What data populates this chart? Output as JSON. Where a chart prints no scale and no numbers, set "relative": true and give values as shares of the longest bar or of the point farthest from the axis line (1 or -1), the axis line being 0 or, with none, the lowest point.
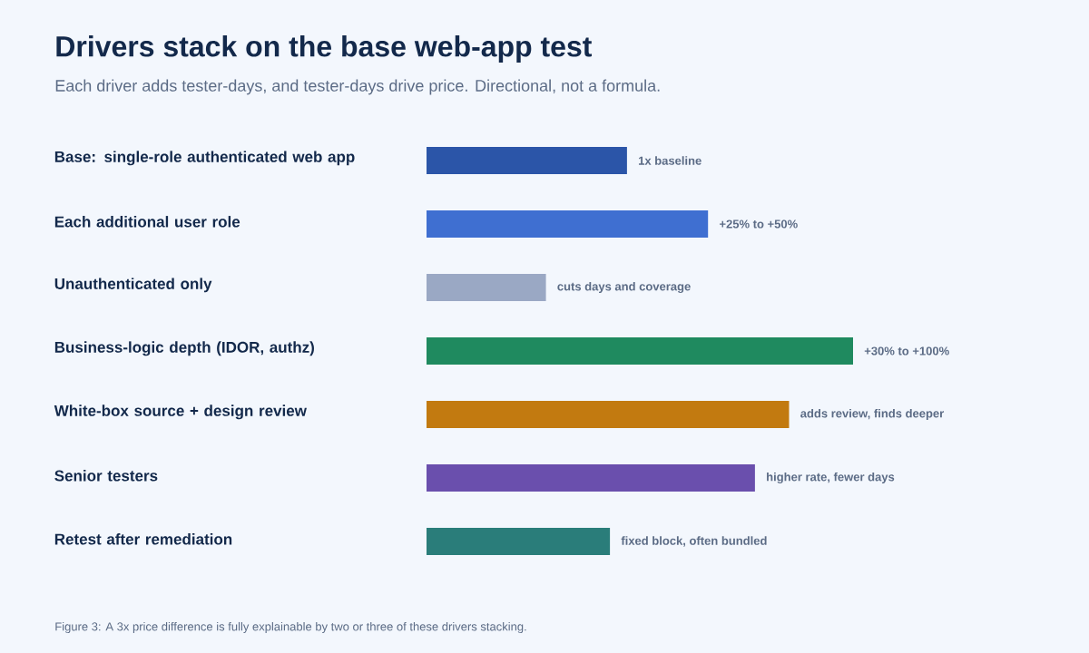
{
  "chart_data": {
    "type": "bar",
    "orientation": "horizontal",
    "relative": true,
    "title": "Drivers stack on the base web-app test",
    "subtitle": "Each driver adds tester-days, and tester-days drive price. Directional, not a formula.",
    "categories": [
      "Base: single-role authenticated web app",
      "Each additional user role",
      "Unauthenticated only",
      "Business-logic depth (IDOR, authz)",
      "White-box source + design review",
      "Senior testers",
      "Retest after remediation"
    ],
    "values": [
      0.47,
      0.66,
      0.28,
      1.0,
      0.85,
      0.77,
      0.43
    ],
    "colors": [
      "#2b55a8",
      "#3f6fd1",
      "#9aa8c4",
      "#1f8a5f",
      "#c27a10",
      "#6a4fad",
      "#2a7d7a"
    ],
    "annotations": [
      {
        "text": "1x baseline",
        "x": 0.47,
        "y": "Base: single-role authenticated web app"
      },
      {
        "text": "+25% to +50%",
        "x": 0.66,
        "y": "Each additional user role"
      },
      {
        "text": "cuts days and coverage",
        "x": 0.28,
        "y": "Unauthenticated only"
      },
      {
        "text": "+30% to +100%",
        "x": 1.0,
        "y": "Business-logic depth (IDOR, authz)"
      },
      {
        "text": "adds review, finds deeper",
        "x": 0.85,
        "y": "White-box source + design review"
      },
      {
        "text": "higher rate, fewer days",
        "x": 0.77,
        "y": "Senior testers"
      },
      {
        "text": "fixed block, often bundled",
        "x": 0.43,
        "y": "Retest after remediation"
      },
      "Figure 3: A 3x price difference is fully explainable by two or three of these drivers stacking."
    ]
  }
}
